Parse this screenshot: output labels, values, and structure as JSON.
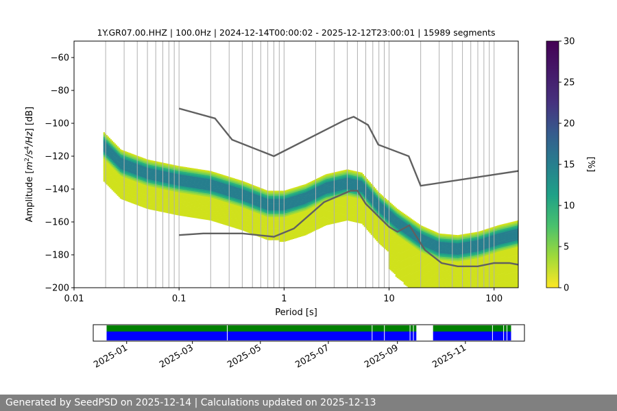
{
  "chart_data": [
    {
      "type": "heatmap",
      "title": "1Y.GR07.00.HHZ | 100.0Hz | 2024-12-14T00:00:02 - 2025-12-12T23:00:01 | 15989 segments",
      "xlabel": "Period [s]",
      "ylabel": "Amplitude [m²/s⁴/Hz] [dB]",
      "ylabel_parts": {
        "a": "Amplitude [",
        "m": "m",
        "exp2": "2",
        "s": "/s",
        "exp4": "4",
        "hz": "/Hz",
        "db": "] [dB]"
      },
      "x_scale": "log",
      "xlim": [
        0.01,
        170
      ],
      "ylim": [
        -200,
        -50
      ],
      "x_ticks": [
        0.01,
        0.1,
        1,
        10,
        100
      ],
      "x_tick_labels": [
        "0.01",
        "0.1",
        "1",
        "10",
        "100"
      ],
      "y_ticks": [
        -200,
        -180,
        -160,
        -140,
        -120,
        -100,
        -80,
        -60
      ],
      "y_tick_labels": [
        "−200",
        "−180",
        "−160",
        "−140",
        "−120",
        "−100",
        "−80",
        "−60"
      ],
      "grid": "vertical",
      "colorbar": {
        "label": "[%]",
        "range": [
          0,
          30
        ],
        "ticks": [
          0,
          5,
          10,
          15,
          20,
          25,
          30
        ],
        "colormap": "viridis"
      },
      "mode_curve": [
        {
          "period": 0.019,
          "db": -113
        },
        {
          "period": 0.028,
          "db": -124
        },
        {
          "period": 0.05,
          "db": -130
        },
        {
          "period": 0.1,
          "db": -134
        },
        {
          "period": 0.2,
          "db": -137
        },
        {
          "period": 0.4,
          "db": -143
        },
        {
          "period": 0.7,
          "db": -149
        },
        {
          "period": 1.0,
          "db": -149
        },
        {
          "period": 1.6,
          "db": -145
        },
        {
          "period": 2.5,
          "db": -139
        },
        {
          "period": 4.0,
          "db": -136
        },
        {
          "period": 5.5,
          "db": -138
        },
        {
          "period": 8,
          "db": -150
        },
        {
          "period": 12,
          "db": -160
        },
        {
          "period": 20,
          "db": -170
        },
        {
          "period": 30,
          "db": -175
        },
        {
          "period": 45,
          "db": -176
        },
        {
          "period": 70,
          "db": -174
        },
        {
          "period": 110,
          "db": -170
        },
        {
          "period": 170,
          "db": -167
        }
      ],
      "reference_curves": [
        {
          "points": [
            {
              "period": 0.1,
              "db": -91
            },
            {
              "period": 0.22,
              "db": -97
            },
            {
              "period": 0.32,
              "db": -110
            },
            {
              "period": 0.8,
              "db": -120
            },
            {
              "period": 3.8,
              "db": -98
            },
            {
              "period": 4.6,
              "db": -96
            },
            {
              "period": 6.3,
              "db": -101
            },
            {
              "period": 7.9,
              "db": -113
            },
            {
              "period": 15.4,
              "db": -120
            },
            {
              "period": 20,
              "db": -138
            },
            {
              "period": 170,
              "db": -129
            }
          ]
        },
        {
          "points": [
            {
              "period": 0.1,
              "db": -168
            },
            {
              "period": 0.17,
              "db": -167
            },
            {
              "period": 0.4,
              "db": -167
            },
            {
              "period": 0.8,
              "db": -169
            },
            {
              "period": 1.24,
              "db": -164
            },
            {
              "period": 2.4,
              "db": -148
            },
            {
              "period": 4.3,
              "db": -141
            },
            {
              "period": 5.0,
              "db": -141
            },
            {
              "period": 6.0,
              "db": -149
            },
            {
              "period": 10,
              "db": -163
            },
            {
              "period": 12,
              "db": -166
            },
            {
              "period": 15.6,
              "db": -162
            },
            {
              "period": 21.9,
              "db": -177
            },
            {
              "period": 31.6,
              "db": -185
            },
            {
              "period": 45,
              "db": -187
            },
            {
              "period": 70,
              "db": -187
            },
            {
              "period": 100,
              "db": -185
            },
            {
              "period": 140,
              "db": -185
            },
            {
              "period": 170,
              "db": -186
            }
          ]
        }
      ]
    },
    {
      "type": "timeline",
      "x_tick_labels": [
        "2025-01",
        "2025-03",
        "2025-05",
        "2025-07",
        "2025-09",
        "2025-11"
      ],
      "x_tick_dates": [
        "2025-01-01",
        "2025-03-01",
        "2025-05-01",
        "2025-07-01",
        "2025-09-01",
        "2025-11-01"
      ],
      "xlim": [
        "2024-12-02",
        "2025-12-24"
      ],
      "bars": [
        {
          "color": "#008000",
          "segments": [
            [
              "2024-12-14",
              "2025-09-18"
            ],
            [
              "2025-10-03",
              "2025-12-12"
            ]
          ]
        },
        {
          "color": "#0000ff",
          "segments": [
            [
              "2024-12-14",
              "2025-09-18"
            ],
            [
              "2025-10-03",
              "2025-12-12"
            ]
          ]
        }
      ]
    }
  ],
  "footer": {
    "text": "Generated by SeedPSD on 2025-12-14 | Calculations updated on 2025-12-13"
  }
}
